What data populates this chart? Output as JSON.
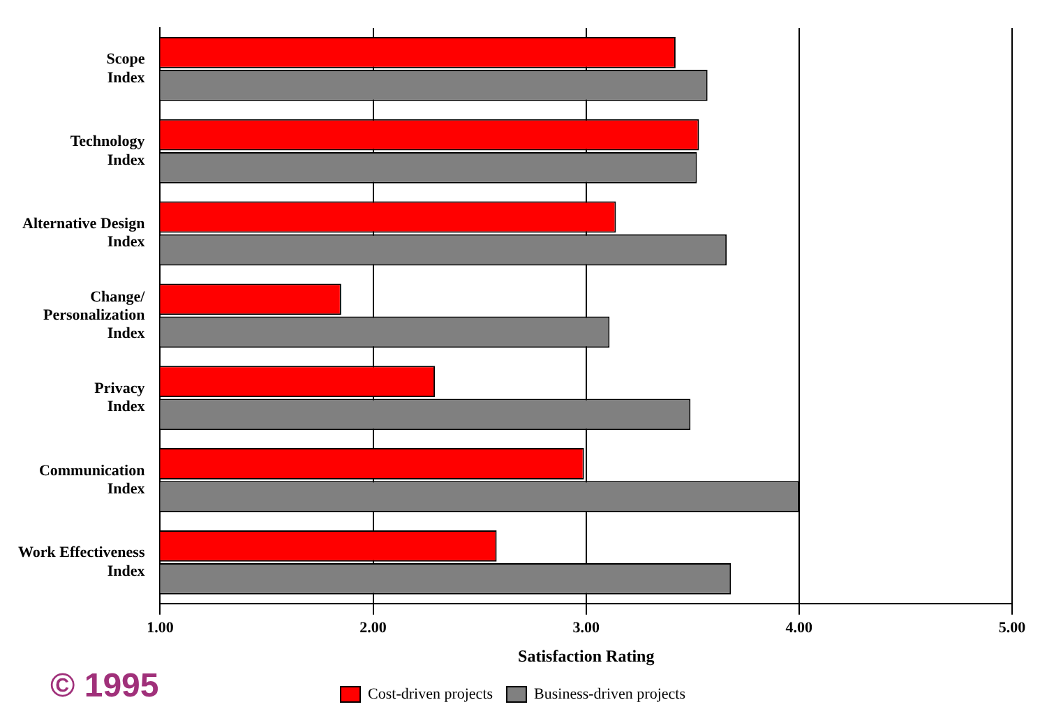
{
  "chart_data": {
    "type": "bar",
    "orientation": "horizontal",
    "xlabel": "Satisfaction Rating",
    "categories": [
      "Scope\nIndex",
      "Technology\nIndex",
      "Alternative Design\nIndex",
      "Change/\nPersonalization\nIndex",
      "Privacy\nIndex",
      "Communication\nIndex",
      "Work Effectiveness\nIndex"
    ],
    "series": [
      {
        "name": "Cost-driven projects",
        "color": "#ff0000",
        "values": [
          3.42,
          3.53,
          3.14,
          1.85,
          2.29,
          2.99,
          2.58
        ]
      },
      {
        "name": "Business-driven projects",
        "color": "#808080",
        "values": [
          3.57,
          3.52,
          3.66,
          3.11,
          3.49,
          4.0,
          3.68
        ]
      }
    ],
    "xlim": [
      1,
      5
    ],
    "xticks": [
      {
        "value": 1,
        "label": "1.00"
      },
      {
        "value": 2,
        "label": "2.00"
      },
      {
        "value": 3,
        "label": "3.00"
      },
      {
        "value": 4,
        "label": "4.00"
      },
      {
        "value": 5,
        "label": "5.00"
      }
    ],
    "grid": "x",
    "legend": "bottom",
    "annotations": [
      "© 1995"
    ]
  }
}
